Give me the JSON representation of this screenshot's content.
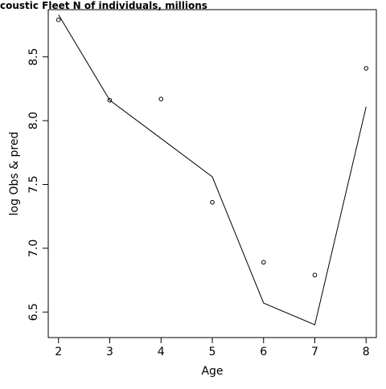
{
  "chart_data": {
    "type": "line",
    "title": "coustic Fleet   N of individuals, millions",
    "xlabel": "Age",
    "ylabel": "log Obs & pred",
    "xlim": [
      1.8,
      8.2
    ],
    "ylim": [
      6.3,
      8.87
    ],
    "x_ticks": [
      2,
      3,
      4,
      5,
      6,
      7,
      8
    ],
    "y_ticks": [
      6.5,
      7.0,
      7.5,
      8.0,
      8.5
    ],
    "y_tick_labels": [
      "6.5",
      "7.0",
      "7.5",
      "8.0",
      "8.5"
    ],
    "series": [
      {
        "kind": "points",
        "marker": "open-circle",
        "x": [
          2,
          3,
          4,
          5,
          6,
          7,
          8
        ],
        "y": [
          8.79,
          8.16,
          8.17,
          7.36,
          6.89,
          6.79,
          8.41
        ]
      },
      {
        "kind": "line",
        "x": [
          2,
          3,
          4,
          5,
          6,
          7,
          8
        ],
        "y": [
          8.83,
          8.16,
          7.86,
          7.56,
          6.57,
          6.4,
          8.11
        ]
      }
    ],
    "grid": false,
    "color": "#000000"
  }
}
